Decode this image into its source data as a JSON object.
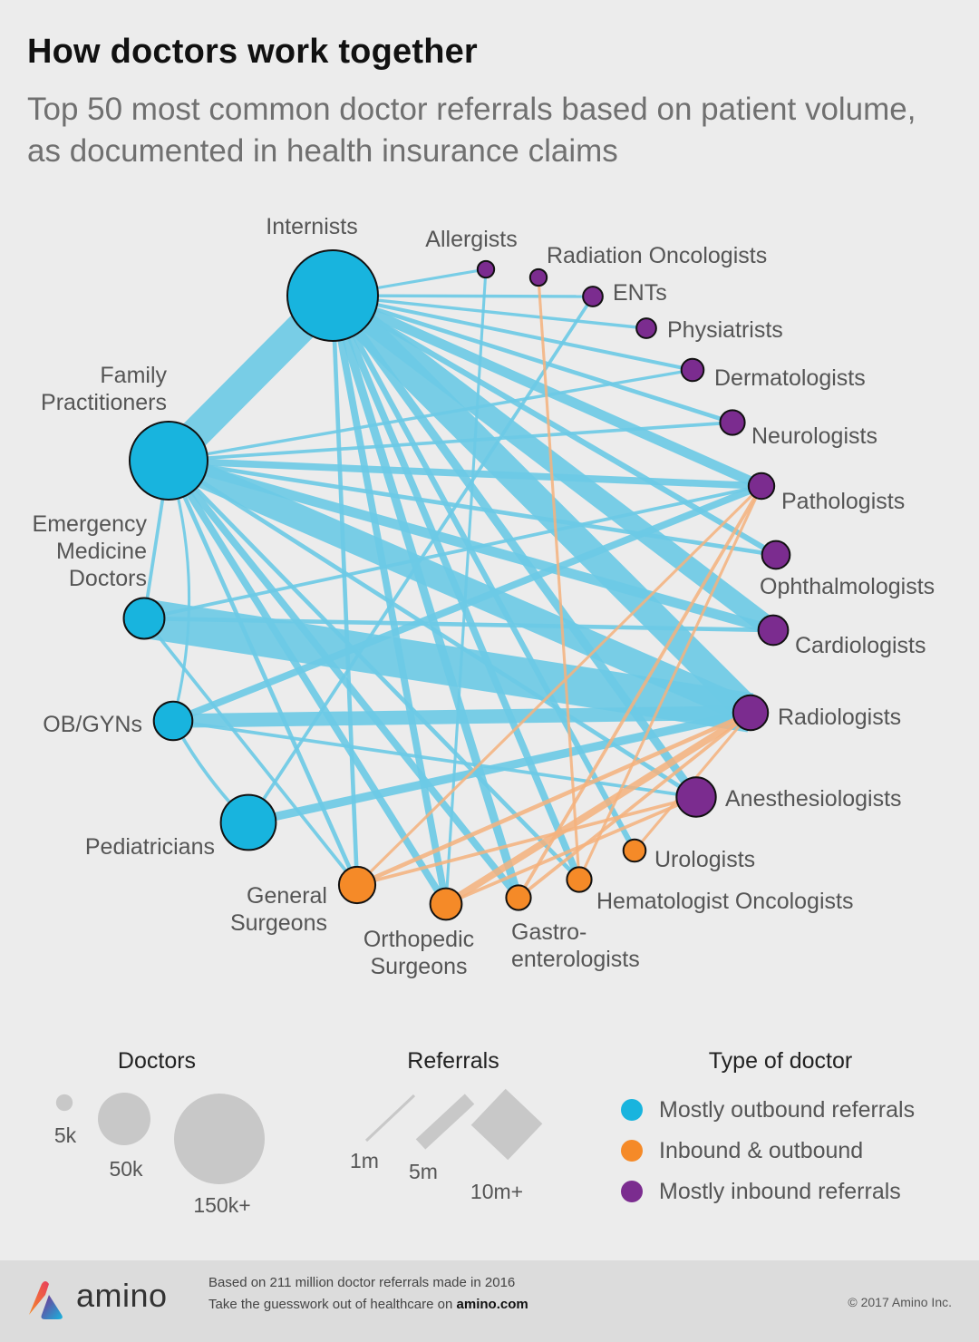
{
  "header": {
    "title": "How doctors work together",
    "subtitle": "Top 50 most common doctor referrals based on patient volume, as documented in health insurance claims"
  },
  "colors": {
    "outbound": "#18b4de",
    "both": "#f58a28",
    "inbound": "#7b2c8f",
    "edge_outbound": "#6ccae6",
    "edge_both": "#f5b27c",
    "legend_gray": "#c8c8c8"
  },
  "nodes": [
    {
      "id": "internists",
      "label": "Internists",
      "type": "outbound",
      "doctors_k": 150
    },
    {
      "id": "allergists",
      "label": "Allergists",
      "type": "inbound",
      "doctors_k": 5
    },
    {
      "id": "radonc",
      "label": "Radiation Oncologists",
      "type": "inbound",
      "doctors_k": 5
    },
    {
      "id": "ents",
      "label": "ENTs",
      "type": "inbound",
      "doctors_k": 7
    },
    {
      "id": "physiatrists",
      "label": "Physiatrists",
      "type": "inbound",
      "doctors_k": 7
    },
    {
      "id": "derm",
      "label": "Dermatologists",
      "type": "inbound",
      "doctors_k": 9
    },
    {
      "id": "neuro",
      "label": "Neurologists",
      "type": "inbound",
      "doctors_k": 11
    },
    {
      "id": "patho",
      "label": "Pathologists",
      "type": "inbound",
      "doctors_k": 12
    },
    {
      "id": "ophth",
      "label": "Ophthalmologists",
      "type": "inbound",
      "doctors_k": 14
    },
    {
      "id": "cardio",
      "label": "Cardiologists",
      "type": "inbound",
      "doctors_k": 16
    },
    {
      "id": "radio",
      "label": "Radiologists",
      "type": "inbound",
      "doctors_k": 22
    },
    {
      "id": "anesth",
      "label": "Anesthesiologists",
      "type": "inbound",
      "doctors_k": 28
    },
    {
      "id": "uro",
      "label": "Urologists",
      "type": "both",
      "doctors_k": 9
    },
    {
      "id": "hemonc",
      "label": "Hematologist Oncologists",
      "type": "both",
      "doctors_k": 11
    },
    {
      "id": "gastro",
      "label": [
        "Gastro-",
        "enterologists"
      ],
      "type": "both",
      "doctors_k": 11
    },
    {
      "id": "ortho",
      "label": [
        "Orthopedic",
        "Surgeons"
      ],
      "type": "both",
      "doctors_k": 18
    },
    {
      "id": "gensurg",
      "label": [
        "General",
        "Surgeons"
      ],
      "type": "both",
      "doctors_k": 24
    },
    {
      "id": "peds",
      "label": "Pediatricians",
      "type": "outbound",
      "doctors_k": 55
    },
    {
      "id": "obgyn",
      "label": "OB/GYNs",
      "type": "outbound",
      "doctors_k": 27
    },
    {
      "id": "emerg",
      "label": [
        "Emergency",
        "Medicine",
        "Doctors"
      ],
      "type": "outbound",
      "doctors_k": 30
    },
    {
      "id": "family",
      "label": [
        "Family",
        "Practitioners"
      ],
      "type": "outbound",
      "doctors_k": 110
    }
  ],
  "edges": [
    {
      "from": "family",
      "to": "internists",
      "referrals_m": 11,
      "type": "outbound"
    },
    {
      "from": "internists",
      "to": "radio",
      "referrals_m": 10,
      "type": "outbound"
    },
    {
      "from": "internists",
      "to": "cardio",
      "referrals_m": 7,
      "type": "outbound"
    },
    {
      "from": "internists",
      "to": "patho",
      "referrals_m": 3.5,
      "type": "outbound"
    },
    {
      "from": "internists",
      "to": "neuro",
      "referrals_m": 1.5,
      "type": "outbound"
    },
    {
      "from": "internists",
      "to": "derm",
      "referrals_m": 1.3,
      "type": "outbound"
    },
    {
      "from": "internists",
      "to": "physiatrists",
      "referrals_m": 1.1,
      "type": "outbound"
    },
    {
      "from": "internists",
      "to": "ents",
      "referrals_m": 1.1,
      "type": "outbound"
    },
    {
      "from": "internists",
      "to": "allergists",
      "referrals_m": 1,
      "type": "outbound"
    },
    {
      "from": "internists",
      "to": "ophth",
      "referrals_m": 2,
      "type": "outbound"
    },
    {
      "from": "internists",
      "to": "anesth",
      "referrals_m": 3,
      "type": "outbound"
    },
    {
      "from": "internists",
      "to": "uro",
      "referrals_m": 2,
      "type": "outbound"
    },
    {
      "from": "internists",
      "to": "hemonc",
      "referrals_m": 2.5,
      "type": "outbound"
    },
    {
      "from": "internists",
      "to": "gastro",
      "referrals_m": 3,
      "type": "outbound"
    },
    {
      "from": "internists",
      "to": "ortho",
      "referrals_m": 2.5,
      "type": "outbound"
    },
    {
      "from": "internists",
      "to": "gensurg",
      "referrals_m": 1.5,
      "type": "outbound"
    },
    {
      "from": "family",
      "to": "radio",
      "referrals_m": 9,
      "type": "outbound"
    },
    {
      "from": "family",
      "to": "cardio",
      "referrals_m": 3.5,
      "type": "outbound"
    },
    {
      "from": "family",
      "to": "patho",
      "referrals_m": 2.5,
      "type": "outbound"
    },
    {
      "from": "family",
      "to": "neuro",
      "referrals_m": 1.2,
      "type": "outbound"
    },
    {
      "from": "family",
      "to": "derm",
      "referrals_m": 1.1,
      "type": "outbound"
    },
    {
      "from": "family",
      "to": "ophth",
      "referrals_m": 1.5,
      "type": "outbound"
    },
    {
      "from": "family",
      "to": "ortho",
      "referrals_m": 2.5,
      "type": "outbound"
    },
    {
      "from": "family",
      "to": "gastro",
      "referrals_m": 2.5,
      "type": "outbound"
    },
    {
      "from": "family",
      "to": "hemonc",
      "referrals_m": 1.5,
      "type": "outbound"
    },
    {
      "from": "family",
      "to": "gensurg",
      "referrals_m": 1.5,
      "type": "outbound"
    },
    {
      "from": "family",
      "to": "obgyn",
      "referrals_m": 1,
      "type": "outbound"
    },
    {
      "from": "family",
      "to": "emerg",
      "referrals_m": 1.2,
      "type": "outbound"
    },
    {
      "from": "family",
      "to": "anesth",
      "referrals_m": 1.5,
      "type": "outbound"
    },
    {
      "from": "emerg",
      "to": "radio",
      "referrals_m": 14,
      "type": "outbound"
    },
    {
      "from": "emerg",
      "to": "cardio",
      "referrals_m": 1.5,
      "type": "outbound"
    },
    {
      "from": "emerg",
      "to": "patho",
      "referrals_m": 1.2,
      "type": "outbound"
    },
    {
      "from": "obgyn",
      "to": "radio",
      "referrals_m": 5,
      "type": "outbound"
    },
    {
      "from": "obgyn",
      "to": "patho",
      "referrals_m": 2.5,
      "type": "outbound"
    },
    {
      "from": "obgyn",
      "to": "anesth",
      "referrals_m": 1.2,
      "type": "outbound"
    },
    {
      "from": "obgyn",
      "to": "peds",
      "referrals_m": 1.2,
      "type": "outbound"
    },
    {
      "from": "peds",
      "to": "radio",
      "referrals_m": 3,
      "type": "outbound"
    },
    {
      "from": "peds",
      "to": "ents",
      "referrals_m": 1.2,
      "type": "outbound"
    },
    {
      "from": "emerg",
      "to": "gensurg",
      "referrals_m": 1.2,
      "type": "outbound"
    },
    {
      "from": "ortho",
      "to": "allergists",
      "referrals_m": 1,
      "type": "outbound"
    },
    {
      "from": "gensurg",
      "to": "patho",
      "referrals_m": 1,
      "type": "both"
    },
    {
      "from": "gensurg",
      "to": "radio",
      "referrals_m": 1.5,
      "type": "both"
    },
    {
      "from": "ortho",
      "to": "radio",
      "referrals_m": 2.5,
      "type": "both"
    },
    {
      "from": "gastro",
      "to": "radio",
      "referrals_m": 1.2,
      "type": "both"
    },
    {
      "from": "gastro",
      "to": "patho",
      "referrals_m": 1.2,
      "type": "both"
    },
    {
      "from": "hemonc",
      "to": "patho",
      "referrals_m": 1,
      "type": "both"
    },
    {
      "from": "hemonc",
      "to": "radonc",
      "referrals_m": 1,
      "type": "both"
    },
    {
      "from": "uro",
      "to": "radio",
      "referrals_m": 1,
      "type": "both"
    },
    {
      "from": "ortho",
      "to": "anesth",
      "referrals_m": 1.2,
      "type": "both"
    },
    {
      "from": "gensurg",
      "to": "anesth",
      "referrals_m": 1.2,
      "type": "both"
    }
  ],
  "legend": {
    "doctors": {
      "title": "Doctors",
      "items": [
        {
          "label": "5k",
          "k": 5
        },
        {
          "label": "50k",
          "k": 50
        },
        {
          "label": "150k+",
          "k": 150
        }
      ]
    },
    "referrals": {
      "title": "Referrals",
      "items": [
        {
          "label": "1m",
          "m": 1
        },
        {
          "label": "5m",
          "m": 5
        },
        {
          "label": "10m+",
          "m": 10
        }
      ]
    },
    "types": {
      "title": "Type of doctor",
      "items": [
        {
          "label": "Mostly outbound referrals",
          "type": "outbound"
        },
        {
          "label": "Inbound & outbound",
          "type": "both"
        },
        {
          "label": "Mostly inbound referrals",
          "type": "inbound"
        }
      ]
    }
  },
  "footer": {
    "logo": "amino",
    "note_line1": "Based on 211 million doctor referrals made in 2016",
    "note_line2_prefix": "Take the guesswork out of healthcare on ",
    "note_line2_link": "amino.com",
    "copyright": "© 2017 Amino Inc."
  }
}
